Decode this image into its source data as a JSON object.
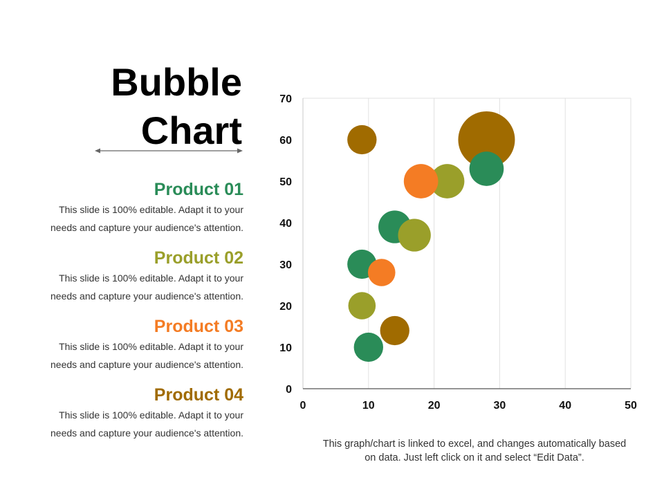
{
  "slide": {
    "title_line1": "Bubble",
    "title_line2": "Chart",
    "products": [
      {
        "name": "Product 01",
        "color": "#2a8c58",
        "desc_line1": "This slide is 100% editable. Adapt it to your",
        "desc_line2": "needs and capture your audience's attention."
      },
      {
        "name": "Product 02",
        "color": "#9a9f2a",
        "desc_line1": "This slide is 100% editable. Adapt it to your",
        "desc_line2": "needs and capture your audience's attention."
      },
      {
        "name": "Product 03",
        "color": "#f47c24",
        "desc_line1": "This slide is 100% editable. Adapt it to your",
        "desc_line2": "needs and capture your audience's attention."
      },
      {
        "name": "Product 04",
        "color": "#a06b00",
        "desc_line1": "This slide is 100% editable. Adapt it to your",
        "desc_line2": "needs and capture your audience's attention."
      }
    ],
    "note_line1": "This graph/chart is linked to excel, and changes automatically based",
    "note_line2": "on data. Just left click on it and select “Edit Data”."
  },
  "chart_data": {
    "type": "scatter",
    "variant": "bubble",
    "title": "",
    "xlabel": "",
    "ylabel": "",
    "xlim": [
      0,
      50
    ],
    "ylim": [
      0,
      70
    ],
    "xticks": [
      0,
      10,
      20,
      30,
      40,
      50
    ],
    "yticks": [
      0,
      10,
      20,
      30,
      40,
      50,
      60,
      70
    ],
    "grid": "vertical",
    "legend": "none",
    "series": [
      {
        "color": "#2a8c58",
        "points": [
          {
            "x": 10,
            "y": 10,
            "size": 8
          },
          {
            "x": 9,
            "y": 30,
            "size": 8
          },
          {
            "x": 14,
            "y": 39,
            "size": 10
          },
          {
            "x": 28,
            "y": 53,
            "size": 11
          }
        ]
      },
      {
        "color": "#9a9f2a",
        "points": [
          {
            "x": 9,
            "y": 20,
            "size": 7
          },
          {
            "x": 17,
            "y": 37,
            "size": 10
          },
          {
            "x": 22,
            "y": 50,
            "size": 11
          }
        ]
      },
      {
        "color": "#f47c24",
        "points": [
          {
            "x": 12,
            "y": 28,
            "size": 7
          },
          {
            "x": 18,
            "y": 50,
            "size": 11
          }
        ]
      },
      {
        "color": "#a06b00",
        "points": [
          {
            "x": 14,
            "y": 14,
            "size": 8
          },
          {
            "x": 9,
            "y": 60,
            "size": 8
          },
          {
            "x": 28,
            "y": 60,
            "size": 30
          }
        ]
      }
    ]
  }
}
